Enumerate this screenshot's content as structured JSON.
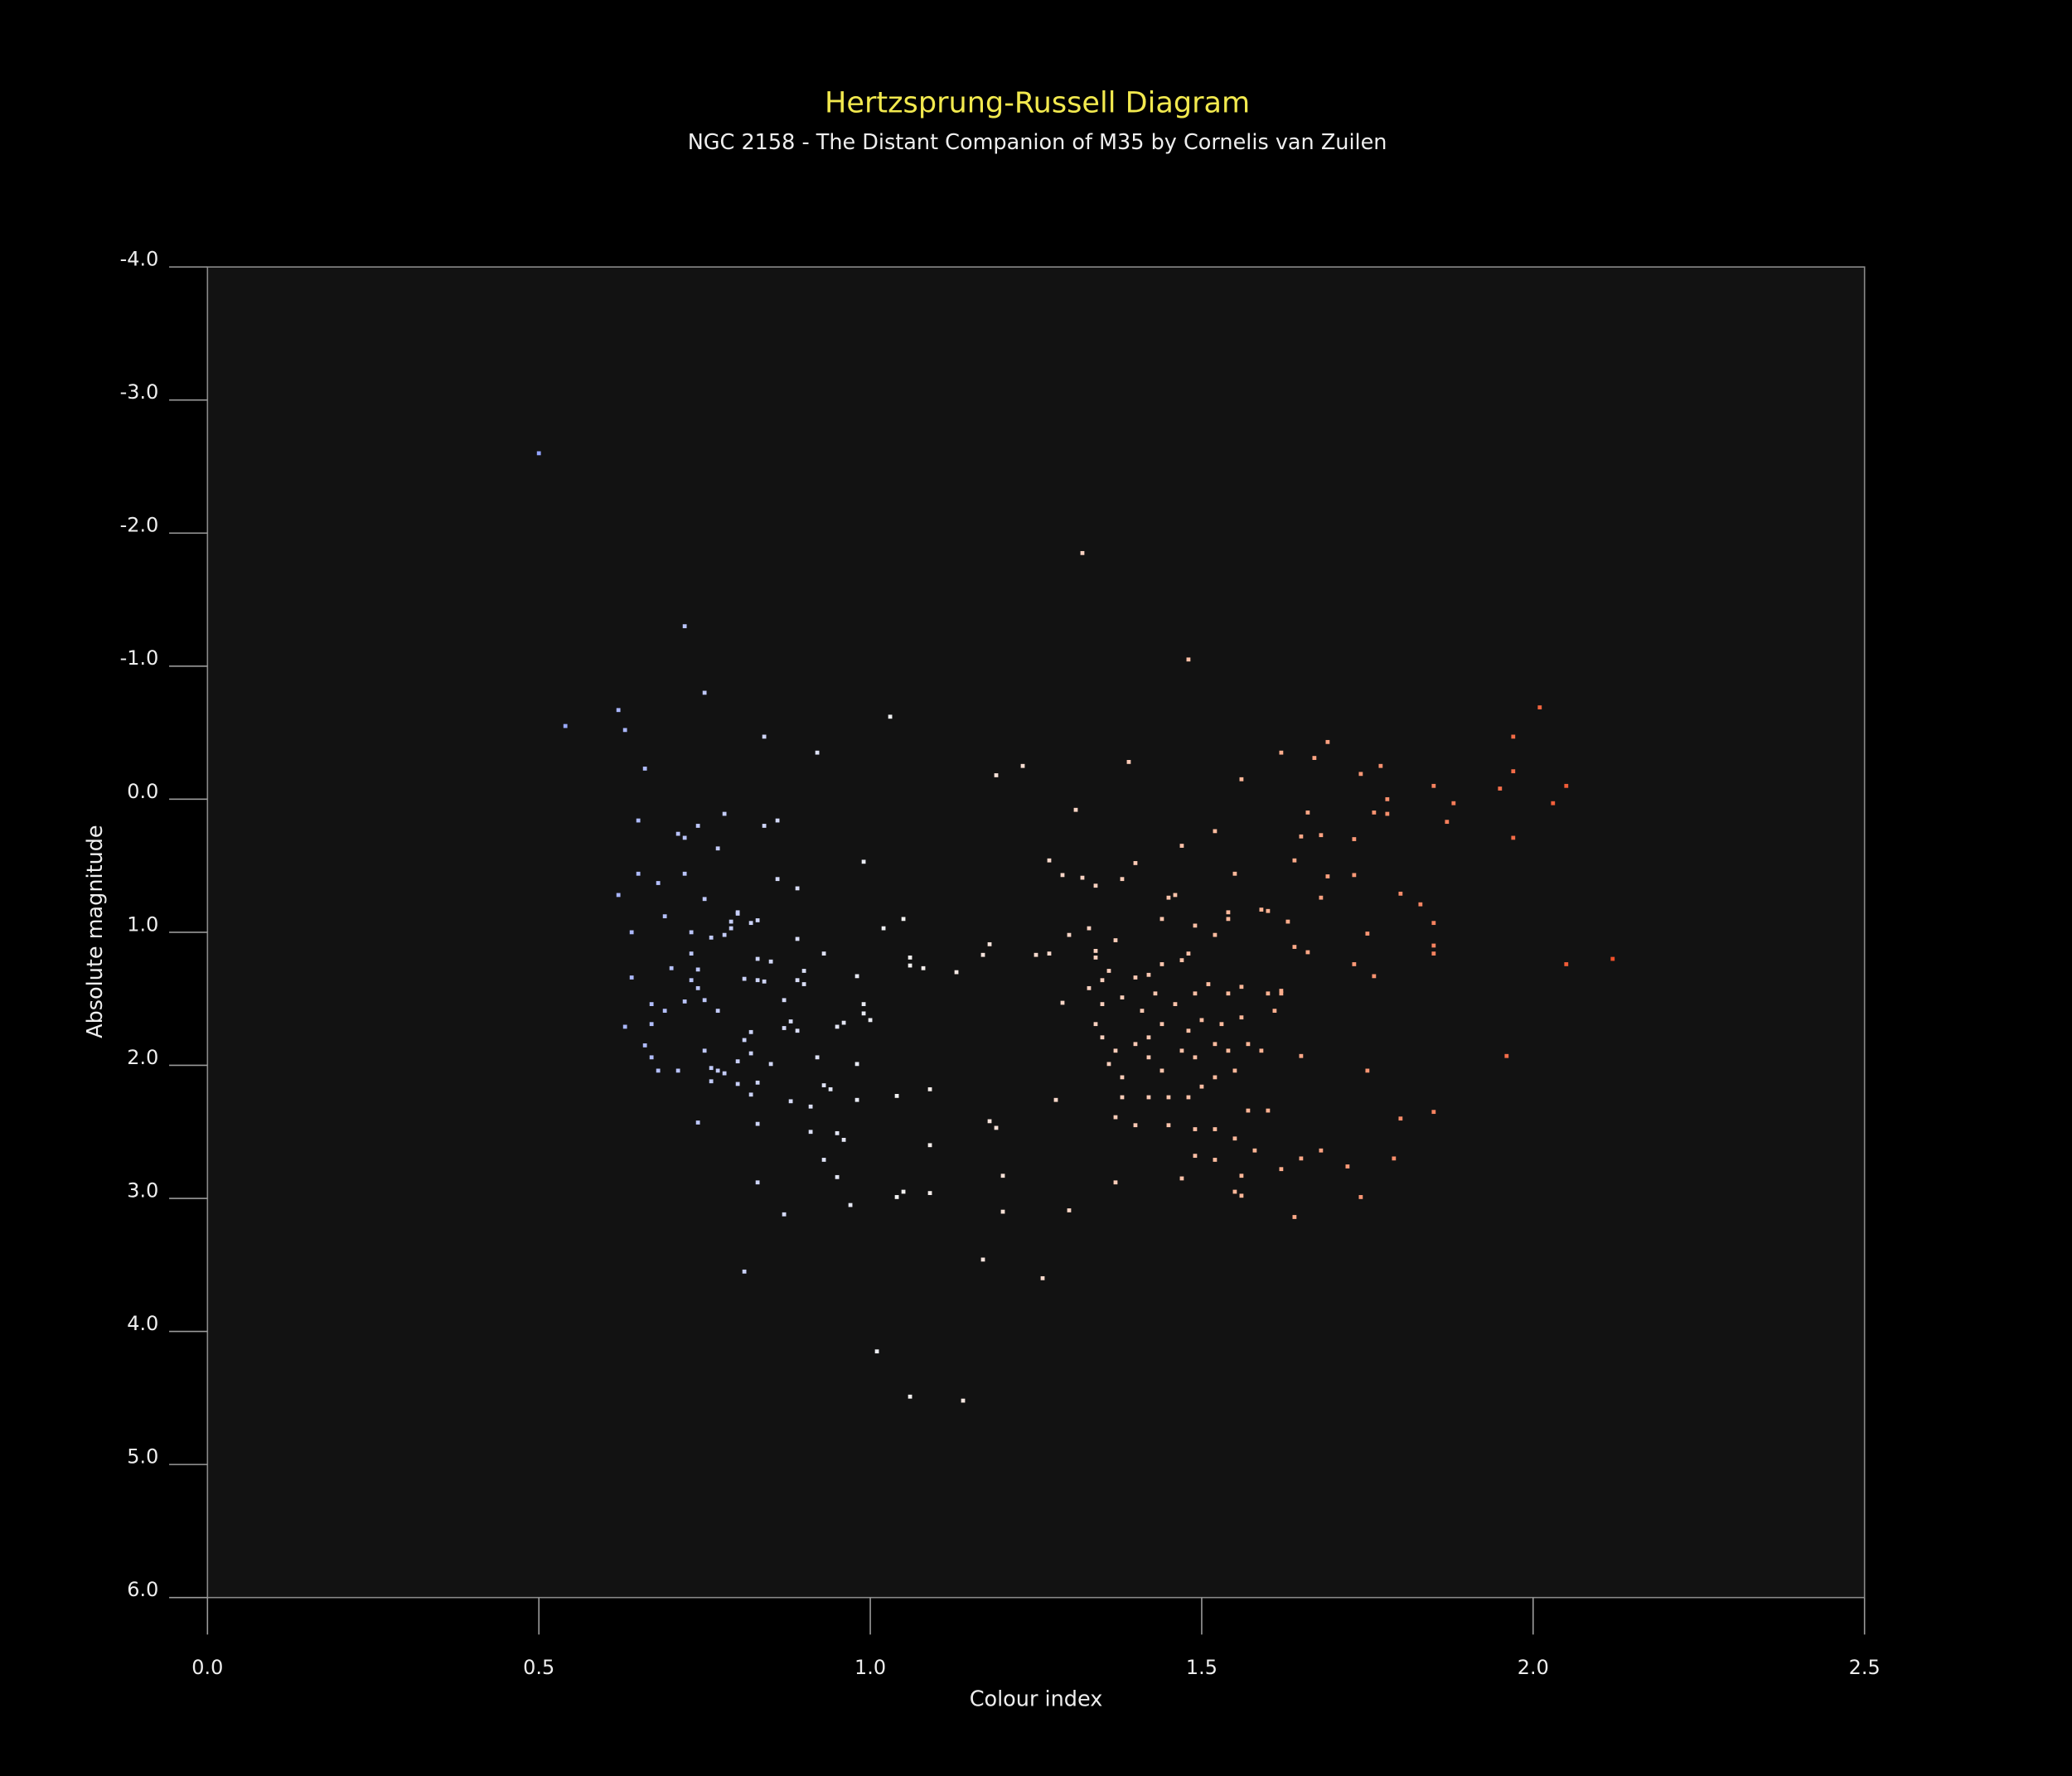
{
  "chart_data": {
    "type": "scatter",
    "title": "Hertzsprung-Russell Diagram",
    "subtitle": "NGC 2158 - The Distant Companion of M35 by Cornelis van Zuilen",
    "x_label": "Colour index",
    "y_label": "Absolute magnitude",
    "xlim": [
      0,
      2.5
    ],
    "ylim": [
      -4,
      6
    ],
    "y_inverted": true,
    "xticks": [
      {
        "value": 0,
        "label": "0.0"
      },
      0.5,
      {
        "value": 1,
        "label": "1.0"
      },
      1.5,
      {
        "value": 2,
        "label": "2.0"
      },
      2.5
    ],
    "yticks": [
      {
        "value": -4,
        "label": "-4.0"
      },
      {
        "value": -3,
        "label": "-3.0"
      },
      {
        "value": -2,
        "label": "-2.0"
      },
      {
        "value": -1,
        "label": "-1.0"
      },
      {
        "value": 0,
        "label": "0.0"
      },
      {
        "value": 1,
        "label": "1.0"
      },
      {
        "value": 2,
        "label": "2.0"
      },
      {
        "value": 3,
        "label": "3.0"
      },
      {
        "value": 4,
        "label": "4.0"
      },
      {
        "value": 5,
        "label": "5.0"
      },
      {
        "value": 6,
        "label": "6.0"
      }
    ],
    "grid": false,
    "colormap": [
      "#93a4ff",
      "#f2f2f2",
      "#ffb595",
      "#f0502a"
    ],
    "x": [
      0.5,
      0.72,
      0.75,
      0.54,
      0.62,
      0.63,
      0.66,
      1.32,
      1.48,
      1.03,
      0.92,
      0.84,
      1.23,
      1.19,
      1.39,
      2.01,
      1.97,
      1.69,
      1.62,
      1.67,
      1.56,
      1.74,
      1.77,
      1.85,
      1.95,
      1.97,
      2.05,
      2.03,
      1.88,
      1.78,
      1.78,
      1.76,
      1.87,
      1.97,
      1.66,
      1.65,
      1.68,
      1.73,
      1.52,
      1.31,
      1.47,
      1.4,
      1.64,
      1.55,
      1.69,
      1.73,
      1.27,
      1.29,
      1.32,
      1.34,
      1.38,
      1.8,
      1.83,
      1.68,
      1.85,
      1.85,
      1.85,
      1.75,
      2.12,
      2.05,
      1.73,
      1.76,
      1.64,
      1.66,
      1.63,
      1.59,
      1.6,
      1.54,
      1.54,
      1.49,
      1.52,
      1.46,
      1.45,
      1.44,
      1.48,
      1.47,
      1.44,
      1.42,
      1.4,
      1.36,
      1.35,
      1.34,
      1.37,
      1.34,
      1.33,
      1.3,
      1.27,
      1.33,
      1.29,
      1.35,
      1.38,
      1.41,
      1.43,
      1.46,
      1.49,
      1.51,
      1.54,
      1.56,
      1.6,
      1.62,
      1.61,
      1.56,
      1.53,
      1.5,
      1.48,
      1.44,
      1.42,
      1.4,
      1.37,
      1.35,
      1.34,
      1.36,
      1.38,
      1.42,
      1.44,
      1.47,
      1.49,
      1.52,
      1.54,
      1.57,
      1.59,
      1.55,
      1.52,
      1.5,
      1.48,
      1.45,
      1.42,
      1.38,
      1.37,
      1.4,
      1.45,
      1.49,
      1.52,
      1.55,
      1.57,
      1.6,
      1.58,
      1.62,
      1.56,
      1.55,
      1.56,
      1.49,
      1.52,
      1.47,
      1.37,
      1.65,
      1.68,
      1.72,
      1.74,
      1.64,
      1.79,
      1.8,
      1.85,
      1.96,
      1.75,
      1.65,
      1.62,
      1.28,
      1.3,
      1.26,
      1.25,
      0.62,
      0.65,
      0.65,
      0.64,
      0.64,
      0.63,
      0.66,
      0.67,
      0.68,
      0.67,
      0.67,
      0.68,
      0.69,
      0.69,
      0.7,
      0.71,
      0.71,
      0.72,
      0.72,
      0.73,
      0.73,
      0.72,
      0.73,
      0.74,
      0.74,
      0.74,
      0.74,
      0.75,
      0.75,
      0.75,
      0.76,
      0.76,
      0.76,
      0.77,
      0.77,
      0.78,
      0.78,
      0.78,
      0.77,
      0.79,
      0.79,
      0.8,
      0.8,
      0.8,
      0.8,
      0.81,
      0.81,
      0.81,
      0.82,
      0.82,
      0.82,
      0.82,
      0.83,
      0.83,
      0.83,
      0.83,
      0.83,
      0.83,
      0.84,
      0.84,
      0.85,
      0.85,
      0.86,
      0.86,
      0.87,
      0.87,
      0.87,
      0.88,
      0.88,
      0.89,
      0.89,
      0.89,
      0.89,
      0.9,
      0.9,
      0.91,
      0.91,
      0.92,
      0.93,
      0.93,
      0.93,
      0.94,
      0.95,
      0.95,
      0.95,
      0.96,
      0.96,
      0.97,
      0.98,
      0.98,
      0.98,
      0.99,
      0.99,
      0.99,
      1.0,
      1.01,
      1.02,
      1.04,
      1.04,
      1.05,
      1.05,
      1.06,
      1.06,
      1.06,
      1.08,
      1.09,
      1.09,
      1.09,
      1.13,
      1.14,
      1.17,
      1.17,
      1.18,
      1.18,
      1.19,
      1.2,
      1.2
    ],
    "values": [
      -2.6,
      -1.3,
      -0.8,
      -0.55,
      -0.67,
      -0.52,
      -0.23,
      -1.85,
      -1.05,
      -0.62,
      -0.35,
      -0.47,
      -0.25,
      -0.18,
      -0.28,
      -0.69,
      -0.47,
      -0.43,
      -0.35,
      -0.31,
      -0.15,
      -0.19,
      -0.25,
      -0.1,
      -0.08,
      -0.21,
      -0.1,
      0.03,
      0.03,
      0.0,
      0.11,
      0.1,
      0.17,
      0.29,
      0.1,
      0.28,
      0.27,
      0.3,
      0.24,
      0.08,
      0.35,
      0.48,
      0.46,
      0.56,
      0.58,
      0.57,
      0.46,
      0.57,
      0.59,
      0.65,
      0.6,
      0.71,
      0.79,
      0.74,
      0.93,
      1.1,
      1.16,
      1.01,
      1.2,
      1.24,
      1.24,
      1.33,
      1.11,
      1.15,
      0.92,
      0.83,
      0.84,
      0.85,
      0.9,
      0.95,
      1.02,
      0.72,
      0.74,
      0.9,
      1.16,
      1.21,
      1.24,
      1.32,
      1.34,
      1.29,
      1.36,
      1.19,
      1.06,
      1.14,
      0.97,
      1.02,
      1.16,
      1.42,
      1.53,
      1.54,
      1.49,
      1.59,
      1.46,
      1.54,
      1.46,
      1.39,
      1.46,
      1.41,
      1.46,
      1.44,
      1.59,
      1.64,
      1.69,
      1.66,
      1.74,
      1.69,
      1.79,
      1.84,
      1.89,
      1.79,
      1.69,
      1.99,
      2.09,
      1.94,
      2.04,
      1.89,
      1.94,
      1.84,
      1.89,
      1.84,
      1.89,
      2.04,
      2.09,
      2.16,
      2.24,
      2.24,
      2.24,
      2.24,
      2.39,
      2.45,
      2.45,
      2.48,
      2.48,
      2.55,
      2.34,
      2.34,
      2.64,
      2.78,
      2.83,
      2.95,
      2.98,
      2.68,
      2.71,
      2.85,
      2.88,
      2.7,
      2.64,
      2.76,
      2.99,
      3.14,
      2.7,
      2.4,
      2.35,
      1.93,
      2.04,
      1.93,
      1.46,
      2.26,
      3.09,
      3.6,
      1.17,
      0.72,
      0.16,
      0.56,
      1.0,
      1.34,
      1.71,
      1.85,
      1.94,
      2.04,
      1.54,
      1.69,
      0.63,
      0.88,
      1.59,
      1.27,
      2.04,
      0.26,
      0.29,
      0.56,
      1.0,
      1.16,
      1.52,
      1.36,
      1.42,
      1.28,
      2.43,
      0.2,
      0.75,
      1.51,
      1.89,
      2.02,
      2.12,
      1.04,
      1.59,
      0.37,
      0.11,
      1.02,
      2.06,
      2.04,
      0.92,
      0.97,
      0.86,
      0.85,
      2.14,
      1.97,
      3.55,
      1.35,
      1.81,
      0.93,
      1.91,
      2.22,
      1.75,
      1.2,
      1.36,
      0.91,
      2.13,
      2.44,
      2.88,
      0.2,
      1.37,
      1.99,
      1.22,
      0.6,
      0.16,
      1.51,
      3.12,
      1.72,
      2.27,
      1.67,
      1.36,
      0.67,
      1.74,
      1.05,
      1.39,
      1.29,
      2.5,
      2.31,
      1.94,
      1.16,
      2.15,
      2.71,
      2.18,
      2.51,
      2.84,
      1.71,
      2.56,
      1.68,
      3.05,
      1.33,
      1.99,
      2.26,
      0.47,
      1.54,
      1.61,
      1.66,
      4.15,
      0.97,
      2.23,
      2.99,
      2.95,
      0.9,
      1.19,
      1.25,
      4.49,
      1.27,
      2.96,
      2.18,
      2.6,
      1.3,
      4.52,
      3.46,
      1.17,
      1.09,
      2.42,
      2.47,
      2.83,
      3.1
    ]
  }
}
